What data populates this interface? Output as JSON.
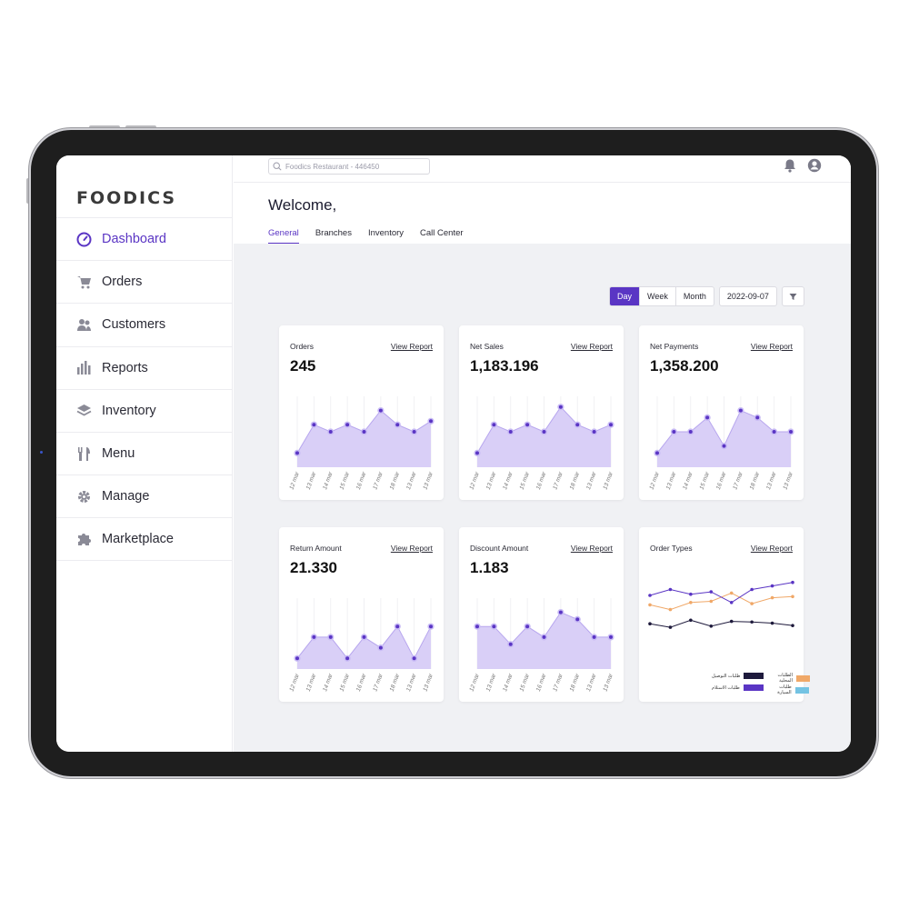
{
  "brand": {
    "logo": "FOODICS",
    "accent": "#5a35c4",
    "area_fill": "#d9cff7"
  },
  "sidebar": {
    "items": [
      {
        "label": "Dashboard",
        "icon": "dashboard-gauge-icon",
        "active": true
      },
      {
        "label": "Orders",
        "icon": "cart-icon"
      },
      {
        "label": "Customers",
        "icon": "users-icon"
      },
      {
        "label": "Reports",
        "icon": "bar-chart-icon"
      },
      {
        "label": "Inventory",
        "icon": "layers-icon"
      },
      {
        "label": "Menu",
        "icon": "fork-knife-icon"
      },
      {
        "label": "Manage",
        "icon": "gear-icon"
      },
      {
        "label": "Marketplace",
        "icon": "puzzle-icon"
      }
    ]
  },
  "topbar": {
    "search_placeholder": "Foodics Restaurant - 446450"
  },
  "header": {
    "welcome": "Welcome,",
    "tabs": [
      "General",
      "Branches",
      "Inventory",
      "Call Center"
    ]
  },
  "controls": {
    "periods": [
      "Day",
      "Week",
      "Month"
    ],
    "active_period": "Day",
    "date": "2022-09-07"
  },
  "cards": [
    {
      "title": "Orders",
      "link": "View Report",
      "value": "245"
    },
    {
      "title": "Net Sales",
      "link": "View Report",
      "value": "1,183.196"
    },
    {
      "title": "Net Payments",
      "link": "View Report",
      "value": "1,358.200"
    },
    {
      "title": "Return Amount",
      "link": "View Report",
      "value": "21.330"
    },
    {
      "title": "Discount Amount",
      "link": "View Report",
      "value": "1.183"
    },
    {
      "title": "Order Types",
      "link": "View Report",
      "value": ""
    }
  ],
  "chart_data": [
    {
      "type": "area",
      "x": [
        "12 mar",
        "13 mar",
        "14 mar",
        "15 mar",
        "16 mar",
        "17 mar",
        "18 mar",
        "13 mar",
        "13 mar"
      ],
      "values": [
        2,
        6,
        5,
        6,
        5,
        8,
        6,
        5,
        6.5
      ],
      "ylim": [
        0,
        10
      ]
    },
    {
      "type": "area",
      "x": [
        "12 mar",
        "13 mar",
        "14 mar",
        "15 mar",
        "16 mar",
        "17 mar",
        "18 mar",
        "13 mar",
        "13 mar"
      ],
      "values": [
        2,
        6,
        5,
        6,
        5,
        8.5,
        6,
        5,
        6
      ],
      "ylim": [
        0,
        10
      ]
    },
    {
      "type": "area",
      "x": [
        "12 mar",
        "13 mar",
        "14 mar",
        "15 mar",
        "16 mar",
        "17 mar",
        "18 mar",
        "13 mar",
        "13 mar"
      ],
      "values": [
        2,
        5,
        5,
        7,
        3,
        8,
        7,
        5,
        5
      ],
      "ylim": [
        0,
        10
      ]
    },
    {
      "type": "area",
      "x": [
        "12 mar",
        "13 mar",
        "14 mar",
        "15 mar",
        "16 mar",
        "17 mar",
        "18 mar",
        "13 mar",
        "13 mar"
      ],
      "values": [
        1.5,
        4.5,
        4.5,
        1.5,
        4.5,
        3,
        6,
        1.5,
        6
      ],
      "ylim": [
        0,
        10
      ]
    },
    {
      "type": "area",
      "x": [
        "12 mar",
        "13 mar",
        "14 mar",
        "15 mar",
        "16 mar",
        "17 mar",
        "18 mar",
        "13 mar",
        "13 mar"
      ],
      "values": [
        6,
        6,
        3.5,
        6,
        4.5,
        8,
        7,
        4.5,
        4.5
      ],
      "ylim": [
        0,
        10
      ]
    },
    {
      "type": "line",
      "series": [
        {
          "name": "طلبات التوصيل",
          "color": "#1e1a3c",
          "values": [
            3.2,
            2.6,
            3.8,
            2.8,
            3.6,
            3.5,
            3.3,
            2.9
          ]
        },
        {
          "name": "الطلبات المحلية",
          "color": "#f0a868",
          "values": [
            6.4,
            5.6,
            6.8,
            7.0,
            8.4,
            6.6,
            7.6,
            7.8
          ]
        },
        {
          "name": "طلبات الاستلام",
          "color": "#5a35c4",
          "values": [
            8.0,
            9.0,
            8.2,
            8.6,
            6.8,
            9.0,
            9.6,
            10.2
          ]
        },
        {
          "name": "طلبات السيارة",
          "color": "#74c3e3",
          "values": []
        }
      ],
      "ylim": [
        0,
        12
      ]
    }
  ]
}
